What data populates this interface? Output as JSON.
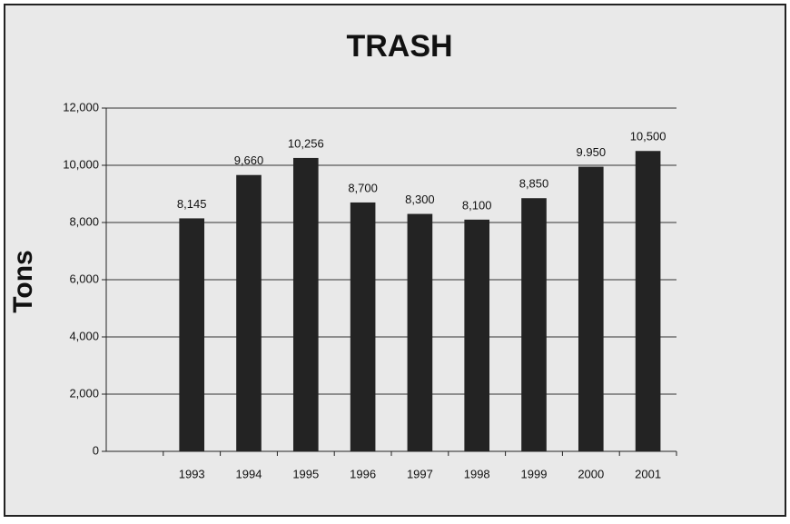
{
  "chart_data": {
    "type": "bar",
    "title": "TRASH",
    "y_label": "Tons",
    "categories": [
      null,
      "1993",
      "1994",
      "1995",
      "1996",
      "1997",
      "1998",
      "1999",
      "2000",
      "2001"
    ],
    "values": [
      null,
      8145,
      9660,
      10256,
      8700,
      8300,
      8100,
      8850,
      9950,
      10500
    ],
    "value_labels": [
      null,
      "8,145",
      "9,660",
      "10,256",
      "8,700",
      "8,300",
      "8,100",
      "8,850",
      "9.950",
      "10,500"
    ],
    "color": "#232323",
    "ylim": [
      0,
      12000
    ],
    "yticks": [
      0,
      {
        "value": 2000,
        "label": "2,000"
      },
      {
        "value": 4000,
        "label": "4,000"
      },
      {
        "value": 6000,
        "label": "6,000"
      },
      {
        "value": 8000,
        "label": "8,000"
      },
      {
        "value": 10000,
        "label": "10,000"
      },
      {
        "value": 12000,
        "label": "12,000"
      }
    ],
    "grid": true
  }
}
